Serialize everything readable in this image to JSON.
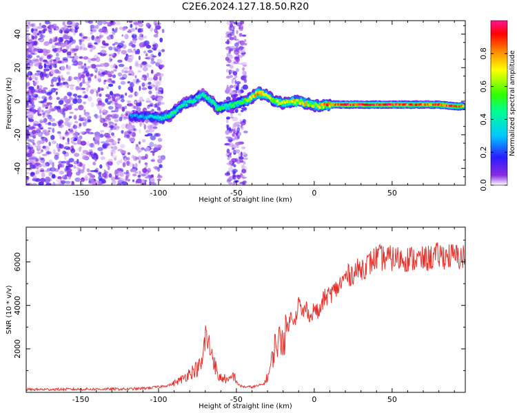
{
  "title": "C2E6.2024.127.18.50.R20",
  "chart_data": [
    {
      "type": "heatmap",
      "xlabel": "Height of straight line (km)",
      "ylabel": "Frequency (Hz)",
      "xlim": [
        -185,
        97
      ],
      "ylim": [
        -50,
        48
      ],
      "x_ticks": [
        -150,
        -100,
        -50,
        0,
        50
      ],
      "y_ticks": [
        -40,
        -20,
        0,
        20,
        40
      ],
      "x_tick_labels": [
        "-150",
        "-100",
        "-50",
        "0",
        "50"
      ],
      "y_tick_labels": [
        "-40",
        "-20",
        "0",
        "20",
        "40"
      ],
      "colorbar": {
        "label": "Normalized spectral amplitude",
        "range": [
          0,
          1
        ],
        "ticks": [
          0.0,
          0.2,
          0.4,
          0.6,
          0.8
        ],
        "tick_labels": [
          "0.0",
          "0.2",
          "0.4",
          "0.6",
          "0.8"
        ],
        "colormap": "rainbow"
      },
      "ridge": [
        {
          "x": -118,
          "f": -9,
          "a": 0.25
        },
        {
          "x": -108,
          "f": -9,
          "a": 0.3
        },
        {
          "x": -98,
          "f": -10,
          "a": 0.4
        },
        {
          "x": -92,
          "f": -8,
          "a": 0.45
        },
        {
          "x": -85,
          "f": -2,
          "a": 0.4
        },
        {
          "x": -78,
          "f": 0,
          "a": 0.45
        },
        {
          "x": -72,
          "f": 4,
          "a": 0.4
        },
        {
          "x": -68,
          "f": 2,
          "a": 0.45
        },
        {
          "x": -62,
          "f": -4,
          "a": 0.5
        },
        {
          "x": -55,
          "f": -3,
          "a": 0.45
        },
        {
          "x": -48,
          "f": -1,
          "a": 0.5
        },
        {
          "x": -42,
          "f": 1,
          "a": 0.6
        },
        {
          "x": -36,
          "f": 5,
          "a": 0.8
        },
        {
          "x": -31,
          "f": 4,
          "a": 0.7
        },
        {
          "x": -26,
          "f": 0,
          "a": 0.6
        },
        {
          "x": -20,
          "f": -1,
          "a": 0.65
        },
        {
          "x": -13,
          "f": 0,
          "a": 0.7
        },
        {
          "x": -7,
          "f": -1,
          "a": 0.7
        },
        {
          "x": -2,
          "f": -2,
          "a": 0.65
        },
        {
          "x": 3,
          "f": -3,
          "a": 0.7
        },
        {
          "x": 10,
          "f": -2,
          "a": 0.85
        },
        {
          "x": 20,
          "f": -2,
          "a": 0.92
        },
        {
          "x": 30,
          "f": -2,
          "a": 0.92
        },
        {
          "x": 40,
          "f": -2,
          "a": 0.92
        },
        {
          "x": 50,
          "f": -2,
          "a": 0.9
        },
        {
          "x": 60,
          "f": -2,
          "a": 0.88
        },
        {
          "x": 70,
          "f": -2,
          "a": 0.85
        },
        {
          "x": 80,
          "f": -2,
          "a": 0.85
        },
        {
          "x": 90,
          "f": -3,
          "a": 0.85
        },
        {
          "x": 96,
          "f": -3,
          "a": 0.85
        }
      ]
    },
    {
      "type": "line",
      "xlabel": "Height of straight line (km)",
      "ylabel": "SNR (10 * v/v)",
      "xlim": [
        -185,
        97
      ],
      "ylim": [
        0,
        7600
      ],
      "x_ticks": [
        -150,
        -100,
        -50,
        0,
        50
      ],
      "y_ticks": [
        2000,
        4000,
        6000
      ],
      "x_tick_labels": [
        "-150",
        "-100",
        "-50",
        "0",
        "50"
      ],
      "y_tick_labels": [
        "2000",
        "4000",
        "6000"
      ],
      "series": [
        {
          "color": "#e8302a",
          "x": [
            -185,
            -160,
            -140,
            -120,
            -110,
            -100,
            -92,
            -85,
            -80,
            -75,
            -72,
            -70,
            -68,
            -65,
            -62,
            -58,
            -55,
            -52,
            -48,
            -44,
            -40,
            -36,
            -32,
            -29,
            -25,
            -22,
            -18,
            -15,
            -12,
            -10,
            -8,
            -5,
            -2,
            0,
            3,
            6,
            10,
            15,
            20,
            25,
            30,
            35,
            40,
            50,
            60,
            70,
            80,
            90,
            97
          ],
          "y": [
            130,
            140,
            150,
            150,
            180,
            250,
            350,
            600,
            900,
            1100,
            1300,
            2600,
            2200,
            1700,
            700,
            650,
            500,
            800,
            300,
            250,
            250,
            300,
            400,
            900,
            2200,
            2400,
            2700,
            3500,
            3400,
            4200,
            3600,
            3900,
            3400,
            3900,
            3600,
            4300,
            4500,
            4800,
            5300,
            5500,
            5700,
            5900,
            6200,
            6150,
            6150,
            6100,
            6300,
            6250,
            6200
          ]
        }
      ]
    }
  ]
}
